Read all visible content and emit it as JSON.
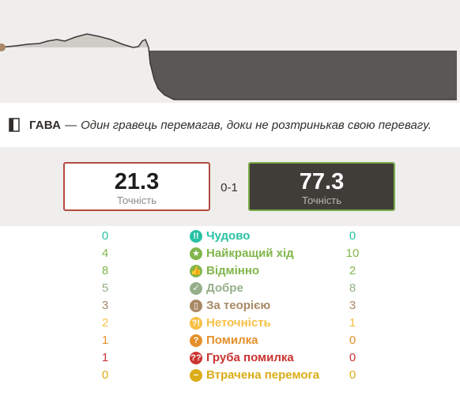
{
  "graph": {
    "white_color": "#f3f2f0",
    "black_color": "#5a5856",
    "early_color": "#cfccc8"
  },
  "summary": {
    "icon": "book-icon",
    "tag": "ГАВА",
    "separator": "—",
    "text": "Один гравець перемагав, доки не розтринькав свою перевагу."
  },
  "accuracy": {
    "white": {
      "value": "21.3",
      "label": "Точність"
    },
    "score": "0-1",
    "black": {
      "value": "77.3",
      "label": "Точність"
    }
  },
  "classifications": [
    {
      "name": "Чудово",
      "icon": "brilliant-icon",
      "glyph": "!!",
      "color": "#26c2a3",
      "white": "0",
      "black": "0"
    },
    {
      "name": "Найкращий хід",
      "icon": "best-move-icon",
      "glyph": "★",
      "color": "#81b64c",
      "white": "4",
      "black": "10"
    },
    {
      "name": "Відмінно",
      "icon": "excellent-icon",
      "glyph": "👍",
      "color": "#81b64c",
      "white": "8",
      "black": "2"
    },
    {
      "name": "Добре",
      "icon": "good-icon",
      "glyph": "✓",
      "color": "#95af8a",
      "white": "5",
      "black": "8"
    },
    {
      "name": "За теорією",
      "icon": "book-move-icon",
      "glyph": "▯",
      "color": "#a88865",
      "white": "3",
      "black": "3"
    },
    {
      "name": "Неточність",
      "icon": "inaccuracy-icon",
      "glyph": "?!",
      "color": "#f7c045",
      "white": "2",
      "black": "1"
    },
    {
      "name": "Помилка",
      "icon": "mistake-icon",
      "glyph": "?",
      "color": "#e58f2a",
      "white": "1",
      "black": "0"
    },
    {
      "name": "Груба помилка",
      "icon": "blunder-icon",
      "glyph": "??",
      "color": "#ca3431",
      "white": "1",
      "black": "0"
    },
    {
      "name": "Втрачена перемога",
      "icon": "missed-win-icon",
      "glyph": "−",
      "color": "#dbac16",
      "white": "0",
      "black": "0"
    }
  ]
}
